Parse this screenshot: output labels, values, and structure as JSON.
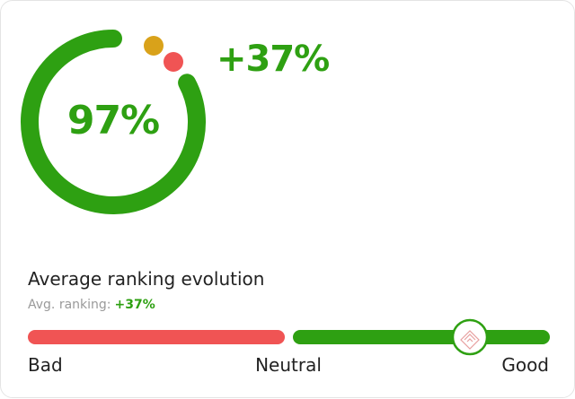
{
  "gauge": {
    "value_label": "97%",
    "change": "+37%"
  },
  "section": {
    "title": "Average ranking evolution",
    "subtitle": {
      "label": "Avg. ranking:",
      "value": "+37%"
    }
  },
  "scale": {
    "labels": [
      "Bad",
      "Neutral",
      "Good"
    ]
  }
}
